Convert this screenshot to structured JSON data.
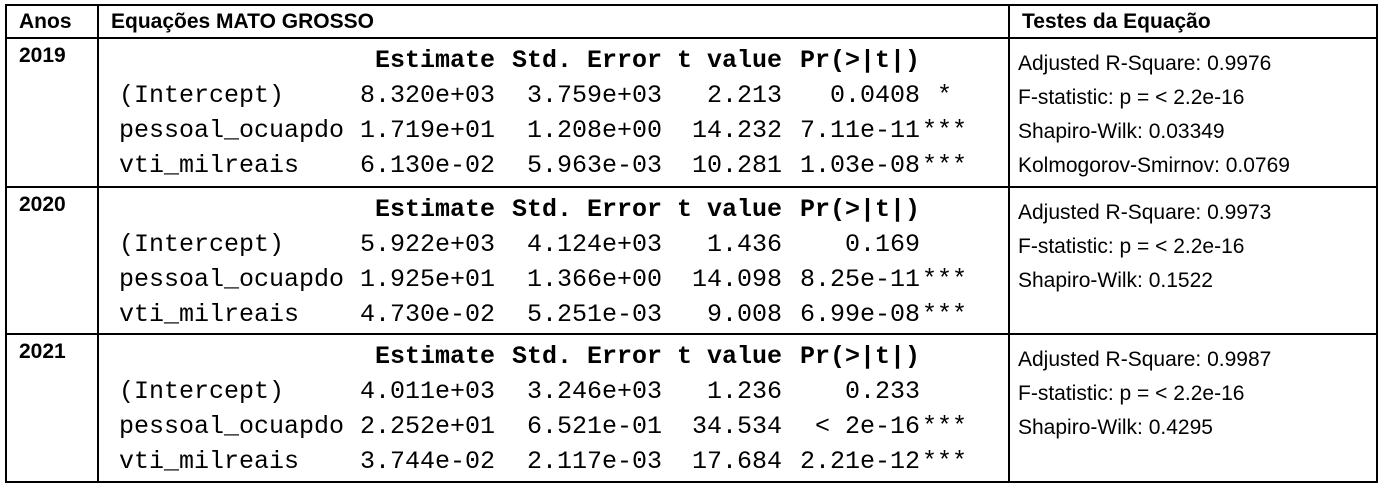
{
  "header": {
    "anos": "Anos",
    "equacoes": "Equações MATO GROSSO",
    "testes": "Testes da Equação"
  },
  "rows": [
    {
      "year": "2019",
      "columns": [
        "Estimate",
        "Std. Error",
        "t value",
        "Pr(>|t|)"
      ],
      "coefficients": [
        {
          "term": "(Intercept)",
          "estimate": "8.320e+03",
          "std_error": "3.759e+03",
          "t_value": "2.213",
          "p_value": "0.0408",
          "signif": "*"
        },
        {
          "term": "pessoal_ocuapdo",
          "estimate": "1.719e+01",
          "std_error": "1.208e+00",
          "t_value": "14.232",
          "p_value": "7.11e-11",
          "signif": "***"
        },
        {
          "term": "vti_milreais",
          "estimate": "6.130e-02",
          "std_error": "5.963e-03",
          "t_value": "10.281",
          "p_value": "1.03e-08",
          "signif": "***"
        }
      ],
      "tests": [
        "Adjusted R-Square: 0.9976",
        "F-statistic: p = < 2.2e-16",
        "Shapiro-Wilk: 0.03349",
        "Kolmogorov-Smirnov: 0.0769"
      ]
    },
    {
      "year": "2020",
      "columns": [
        "Estimate",
        "Std. Error",
        "t value",
        "Pr(>|t|)"
      ],
      "coefficients": [
        {
          "term": "(Intercept)",
          "estimate": "5.922e+03",
          "std_error": "4.124e+03",
          "t_value": "1.436",
          "p_value": "0.169",
          "signif": ""
        },
        {
          "term": "pessoal_ocuapdo",
          "estimate": "1.925e+01",
          "std_error": "1.366e+00",
          "t_value": "14.098",
          "p_value": "8.25e-11",
          "signif": "***"
        },
        {
          "term": "vti_milreais",
          "estimate": "4.730e-02",
          "std_error": "5.251e-03",
          "t_value": "9.008",
          "p_value": "6.99e-08",
          "signif": "***"
        }
      ],
      "tests": [
        "Adjusted R-Square: 0.9973",
        "F-statistic: p = < 2.2e-16",
        "Shapiro-Wilk: 0.1522"
      ]
    },
    {
      "year": "2021",
      "columns": [
        "Estimate",
        "Std. Error",
        "t value",
        "Pr(>|t|)"
      ],
      "coefficients": [
        {
          "term": "(Intercept)",
          "estimate": "4.011e+03",
          "std_error": "3.246e+03",
          "t_value": "1.236",
          "p_value": "0.233",
          "signif": ""
        },
        {
          "term": "pessoal_ocuapdo",
          "estimate": "2.252e+01",
          "std_error": "6.521e-01",
          "t_value": "34.534",
          "p_value": "< 2e-16",
          "signif": "***"
        },
        {
          "term": "vti_milreais",
          "estimate": "3.744e-02",
          "std_error": "2.117e-03",
          "t_value": "17.684",
          "p_value": "2.21e-12",
          "signif": "***"
        }
      ],
      "tests": [
        "Adjusted R-Square: 0.9987",
        "F-statistic: p = < 2.2e-16",
        "Shapiro-Wilk: 0.4295"
      ]
    }
  ]
}
